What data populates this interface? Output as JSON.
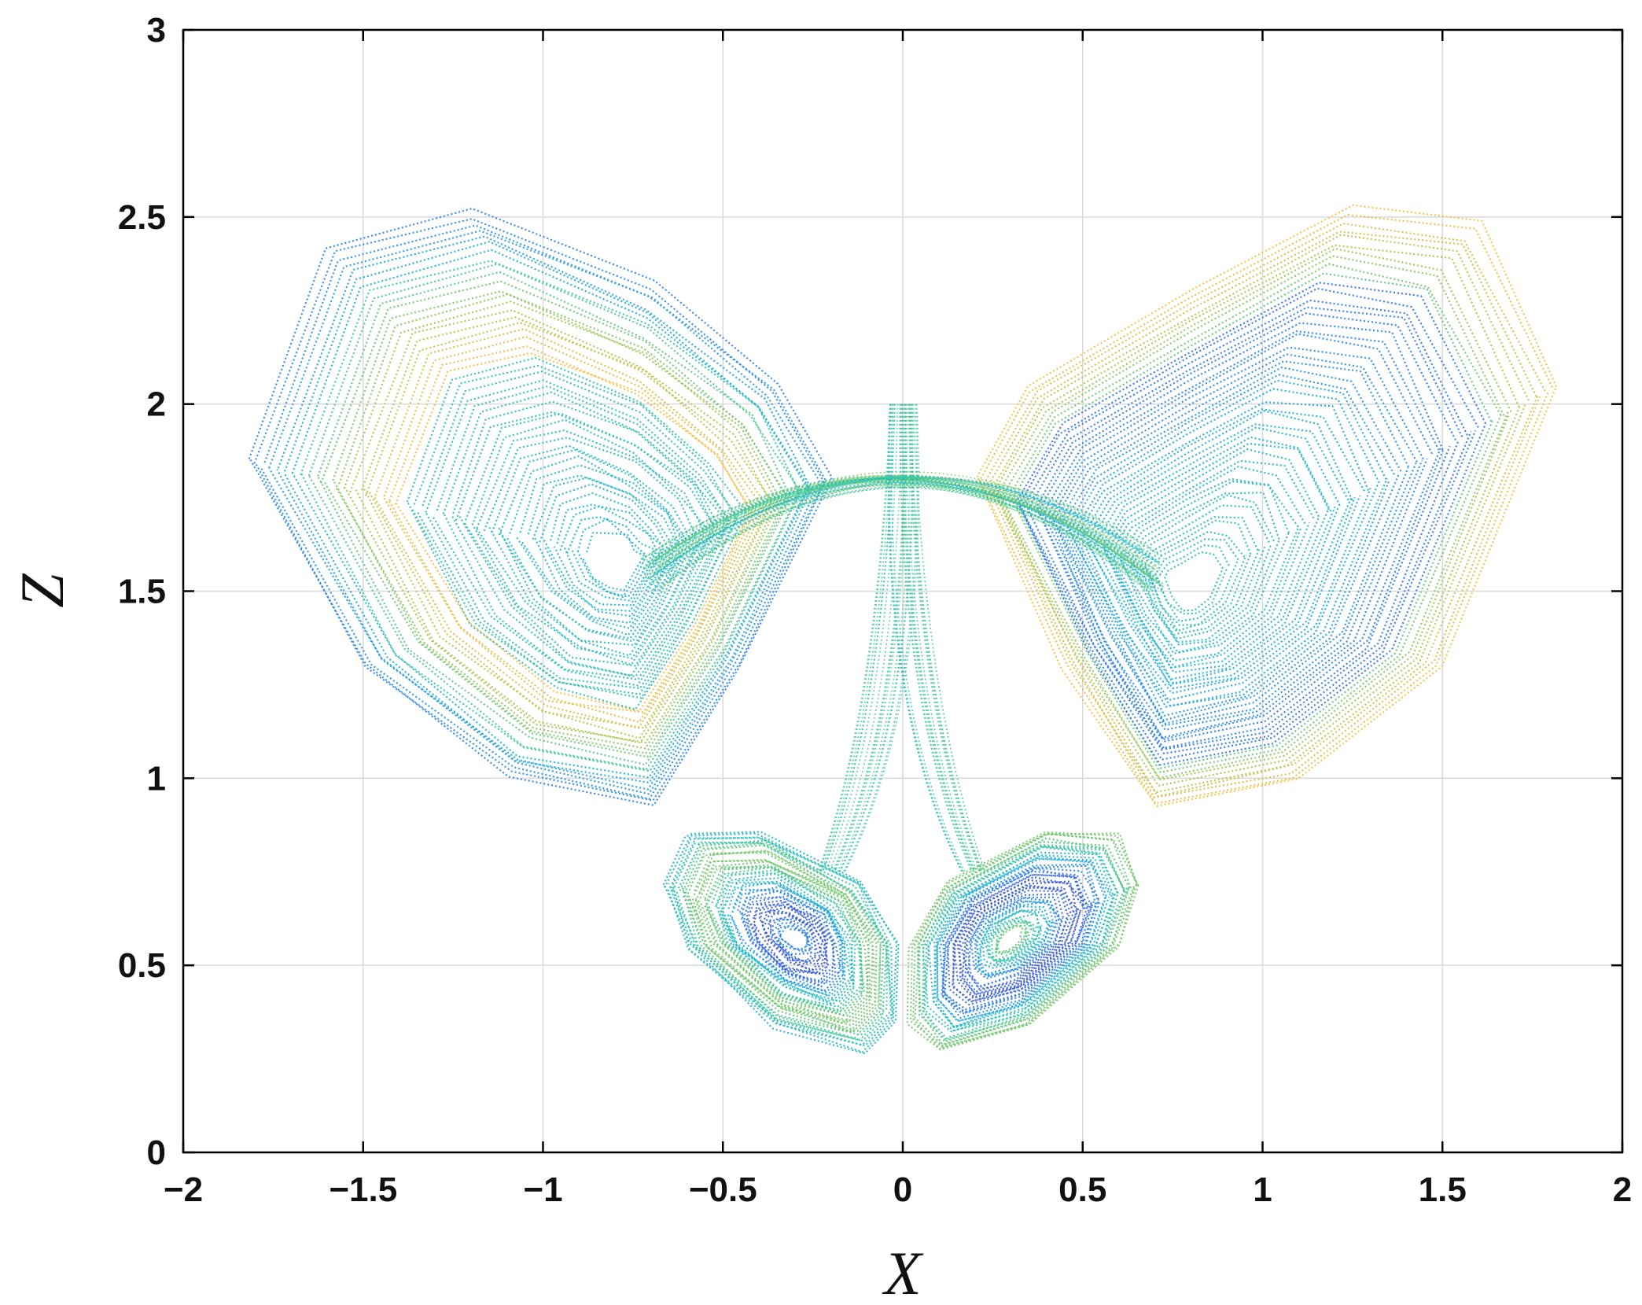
{
  "chart_data": {
    "type": "scatter",
    "title": "",
    "xlabel": "X",
    "ylabel": "Z",
    "xlim": [
      -2,
      2
    ],
    "ylim": [
      0,
      3
    ],
    "xticks": [
      -2,
      -1.5,
      -1,
      -0.5,
      0,
      0.5,
      1,
      1.5,
      2
    ],
    "xtick_labels": [
      "−2",
      "−1.5",
      "−1",
      "−0.5",
      "0",
      "0.5",
      "1",
      "1.5",
      "2"
    ],
    "yticks": [
      0,
      0.5,
      1,
      1.5,
      2,
      2.5,
      3
    ],
    "ytick_labels": [
      "0",
      "0.5",
      "1",
      "1.5",
      "2",
      "2.5",
      "3"
    ],
    "grid": true,
    "colormap": [
      "#3e26a8",
      "#2c73f3",
      "#14b1d9",
      "#30c79c",
      "#a3c543",
      "#f8ba3d",
      "#f9fb15"
    ],
    "series": [
      {
        "shape": "upper-left-lobe",
        "outer": [
          [
            -1.82,
            1.85
          ],
          [
            -1.6,
            2.42
          ],
          [
            -1.2,
            2.52
          ],
          [
            -0.7,
            2.32
          ],
          [
            -0.35,
            2.05
          ],
          [
            -0.2,
            1.8
          ],
          [
            -0.45,
            1.3
          ],
          [
            -0.7,
            0.92
          ],
          [
            -1.1,
            1.0
          ],
          [
            -1.5,
            1.3
          ],
          [
            -1.82,
            1.85
          ]
        ],
        "center": [
          -0.78,
          1.57
        ],
        "color_note": "blue outer edge, green/yellow upper, cyan core"
      },
      {
        "shape": "upper-right-lobe",
        "outer": [
          [
            1.82,
            2.05
          ],
          [
            1.6,
            2.48
          ],
          [
            1.25,
            2.53
          ],
          [
            0.8,
            2.3
          ],
          [
            0.35,
            2.05
          ],
          [
            0.2,
            1.8
          ],
          [
            0.45,
            1.3
          ],
          [
            0.7,
            0.92
          ],
          [
            1.1,
            1.0
          ],
          [
            1.5,
            1.3
          ],
          [
            1.82,
            2.05
          ]
        ],
        "center": [
          0.78,
          1.5
        ],
        "color_note": "purple/blue top, orange outer edge, cyan core"
      },
      {
        "shape": "lower-left-lobe",
        "outer": [
          [
            -0.66,
            0.72
          ],
          [
            -0.6,
            0.85
          ],
          [
            -0.4,
            0.86
          ],
          [
            -0.12,
            0.72
          ],
          [
            -0.02,
            0.55
          ],
          [
            -0.02,
            0.35
          ],
          [
            -0.1,
            0.27
          ],
          [
            -0.35,
            0.34
          ],
          [
            -0.6,
            0.55
          ],
          [
            -0.66,
            0.72
          ]
        ],
        "center": [
          -0.3,
          0.57
        ]
      },
      {
        "shape": "lower-right-lobe",
        "outer": [
          [
            0.66,
            0.72
          ],
          [
            0.6,
            0.85
          ],
          [
            0.4,
            0.86
          ],
          [
            0.12,
            0.72
          ],
          [
            0.02,
            0.55
          ],
          [
            0.02,
            0.35
          ],
          [
            0.1,
            0.27
          ],
          [
            0.35,
            0.34
          ],
          [
            0.6,
            0.55
          ],
          [
            0.66,
            0.72
          ]
        ],
        "center": [
          0.3,
          0.57
        ]
      }
    ]
  }
}
